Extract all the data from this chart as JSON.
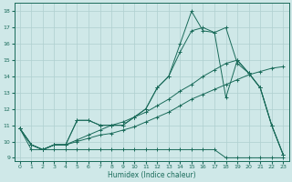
{
  "xlabel": "Humidex (Indice chaleur)",
  "background_color": "#cfe8e8",
  "grid_color": "#b8d4d4",
  "line_color": "#1a6b5a",
  "xlim": [
    -0.5,
    23.5
  ],
  "ylim": [
    8.8,
    18.5
  ],
  "yticks": [
    9,
    10,
    11,
    12,
    13,
    14,
    15,
    16,
    17,
    18
  ],
  "xticks": [
    0,
    1,
    2,
    3,
    4,
    5,
    6,
    7,
    8,
    9,
    10,
    11,
    12,
    13,
    14,
    15,
    16,
    17,
    18,
    19,
    20,
    21,
    22,
    23
  ],
  "series": [
    {
      "x": [
        0,
        1,
        2,
        3,
        4,
        5,
        6,
        7,
        8,
        9,
        10,
        11,
        12,
        13,
        14,
        15,
        16,
        17,
        18,
        19,
        20,
        21,
        22,
        23
      ],
      "y": [
        10.8,
        9.5,
        9.5,
        9.5,
        9.5,
        9.5,
        9.5,
        9.5,
        9.5,
        9.5,
        9.5,
        9.5,
        9.5,
        9.5,
        9.5,
        9.5,
        9.5,
        9.5,
        9.0,
        9.0,
        9.0,
        9.0,
        9.0,
        9.0
      ]
    },
    {
      "x": [
        0,
        1,
        2,
        3,
        4,
        5,
        6,
        7,
        8,
        9,
        10,
        11,
        12,
        13,
        14,
        15,
        16,
        17,
        18,
        19,
        20,
        21,
        22,
        23
      ],
      "y": [
        10.8,
        9.8,
        9.5,
        9.8,
        9.8,
        10.0,
        10.2,
        10.4,
        10.5,
        10.7,
        10.9,
        11.2,
        11.5,
        11.8,
        12.2,
        12.6,
        12.9,
        13.2,
        13.5,
        13.8,
        14.1,
        14.3,
        14.5,
        14.6
      ]
    },
    {
      "x": [
        0,
        1,
        2,
        3,
        4,
        5,
        6,
        7,
        8,
        9,
        10,
        11,
        12,
        13,
        14,
        15,
        16,
        17,
        18,
        19,
        20,
        21,
        22,
        23
      ],
      "y": [
        10.8,
        9.8,
        9.5,
        9.8,
        9.8,
        10.1,
        10.4,
        10.7,
        11.0,
        11.2,
        11.5,
        11.8,
        12.2,
        12.6,
        13.1,
        13.5,
        14.0,
        14.4,
        14.8,
        15.0,
        14.2,
        13.3,
        11.0,
        9.2
      ]
    },
    {
      "x": [
        0,
        1,
        2,
        3,
        4,
        5,
        6,
        7,
        8,
        9,
        10,
        11,
        12,
        13,
        14,
        15,
        16,
        17,
        18,
        19,
        20,
        21,
        22,
        23
      ],
      "y": [
        10.8,
        9.8,
        9.5,
        9.8,
        9.8,
        11.3,
        11.3,
        11.0,
        11.0,
        11.0,
        11.5,
        12.0,
        13.3,
        14.0,
        15.5,
        16.8,
        17.0,
        16.7,
        12.7,
        15.0,
        14.2,
        13.3,
        11.0,
        9.2
      ]
    },
    {
      "x": [
        0,
        1,
        2,
        3,
        4,
        5,
        6,
        7,
        8,
        9,
        10,
        11,
        12,
        13,
        14,
        15,
        16,
        17,
        18,
        19,
        20,
        21,
        22,
        23
      ],
      "y": [
        10.8,
        9.8,
        9.5,
        9.8,
        9.8,
        11.3,
        11.3,
        11.0,
        11.0,
        11.0,
        11.5,
        12.0,
        13.3,
        14.0,
        16.0,
        18.0,
        16.8,
        16.7,
        17.0,
        14.8,
        14.2,
        13.3,
        11.0,
        9.2
      ]
    }
  ]
}
